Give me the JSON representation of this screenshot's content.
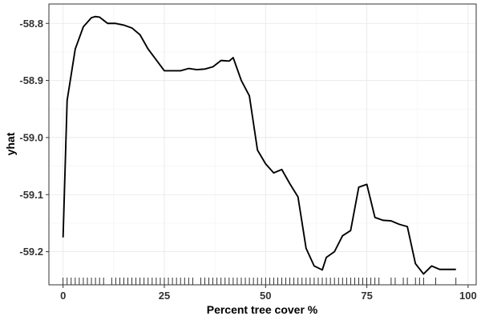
{
  "chart_data": {
    "type": "line",
    "xlabel": "Percent tree cover %",
    "ylabel": "yhat",
    "xlim": [
      -3.5,
      102
    ],
    "ylim": [
      -59.258,
      -58.766
    ],
    "x_ticks": [
      0,
      25,
      50,
      75,
      100
    ],
    "y_ticks": [
      -58.8,
      -58.9,
      -59.0,
      -59.1,
      -59.2
    ],
    "y_tick_labels": [
      "-58.8",
      "-58.9",
      "-59.0",
      "-59.1",
      "-59.2"
    ],
    "grid": true,
    "line_color": "#000000",
    "series": [
      {
        "x": [
          0,
          1,
          3,
          5,
          7,
          8,
          9,
          11,
          13,
          15,
          17,
          19,
          21,
          25,
          29,
          31,
          33,
          35,
          37,
          39,
          41,
          42,
          44,
          46,
          48,
          50,
          52,
          54,
          56,
          58,
          60,
          62,
          64,
          65,
          67,
          69,
          71,
          73,
          75,
          77,
          79,
          81,
          83,
          85,
          87,
          89,
          91,
          93,
          95,
          97
        ],
        "y": [
          -59.175,
          -58.935,
          -58.845,
          -58.806,
          -58.79,
          -58.788,
          -58.789,
          -58.8,
          -58.8,
          -58.803,
          -58.808,
          -58.82,
          -58.845,
          -58.883,
          -58.883,
          -58.879,
          -58.881,
          -58.88,
          -58.876,
          -58.865,
          -58.866,
          -58.86,
          -58.9,
          -58.927,
          -59.022,
          -59.046,
          -59.062,
          -59.056,
          -59.081,
          -59.104,
          -59.194,
          -59.225,
          -59.232,
          -59.21,
          -59.2,
          -59.172,
          -59.163,
          -59.087,
          -59.082,
          -59.14,
          -59.145,
          -59.146,
          -59.152,
          -59.156,
          -59.221,
          -59.239,
          -59.225,
          -59.231,
          -59.231,
          -59.231
        ]
      }
    ],
    "rug_x": [
      0,
      1,
      2,
      3,
      4,
      5,
      6,
      7,
      8,
      9,
      10,
      12,
      13,
      14,
      15,
      16,
      17,
      18,
      19,
      20,
      21,
      22,
      23,
      24,
      25,
      26,
      27,
      28,
      29,
      30,
      31,
      32,
      34,
      35,
      36,
      37,
      38,
      39,
      40,
      41,
      42,
      43,
      44,
      45,
      46,
      47,
      48,
      49,
      50,
      51,
      52,
      53,
      54,
      55,
      56,
      57,
      58,
      59,
      60,
      61,
      62,
      63,
      64,
      65,
      66,
      67,
      68,
      69,
      70,
      71,
      72,
      73,
      74,
      75,
      76,
      77,
      78,
      81,
      82,
      84,
      85,
      87,
      88,
      89,
      92,
      97
    ]
  }
}
